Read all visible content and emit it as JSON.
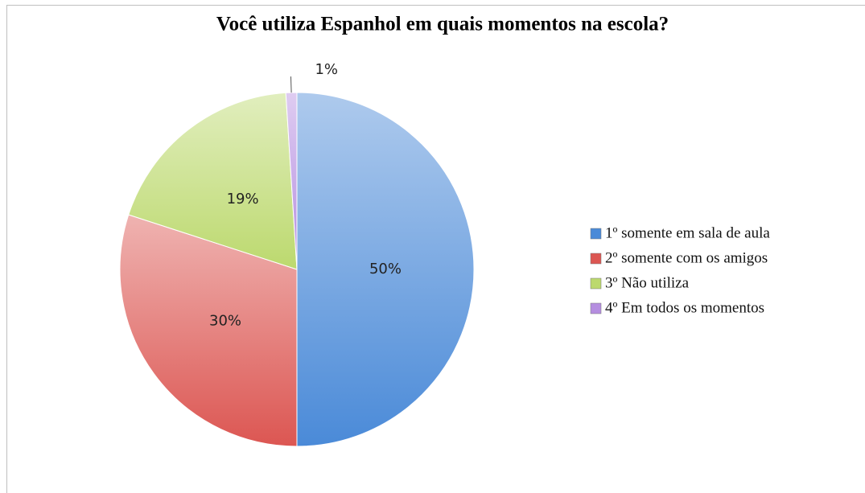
{
  "chart_data": {
    "type": "pie",
    "title": "Você utiliza Espanhol em quais momentos na escola?",
    "categories": [
      "1º somente em sala de aula",
      "2º somente com os amigos",
      "3º Não utiliza",
      "4º Em todos os momentos"
    ],
    "values": [
      50,
      30,
      19,
      1
    ],
    "value_labels": [
      "50%",
      "30%",
      "19%",
      "1%"
    ],
    "colors": [
      "#4a8ad8",
      "#dc5652",
      "#bcd96e",
      "#b58ee0"
    ],
    "legend": "right"
  }
}
